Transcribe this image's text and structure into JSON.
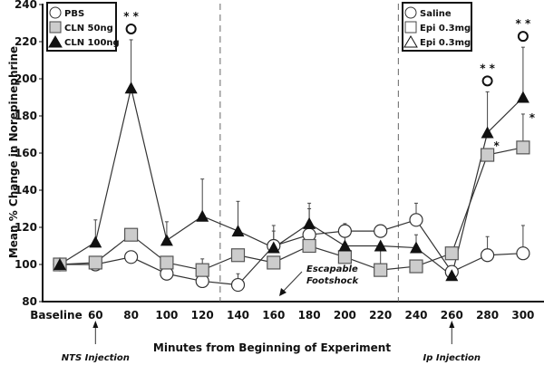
{
  "chart_data": {
    "type": "line",
    "xlabel": "Minutes from Beginning of Experiment",
    "ylabel": "Mean % Change in Norepinephrine",
    "ylim": [
      80,
      240
    ],
    "yticks": [
      "80",
      "100",
      "120",
      "140",
      "160",
      "180",
      "200",
      "220",
      "240"
    ],
    "categories": [
      "Baseline",
      "60",
      "80",
      "100",
      "120",
      "140",
      "160",
      "180",
      "200",
      "220",
      "240",
      "260",
      "280",
      "300"
    ],
    "series": [
      {
        "name": "PBS",
        "marker": "circle-open",
        "values": [
          100,
          100,
          104,
          95,
          91,
          89,
          110,
          116,
          118,
          118,
          124,
          96,
          105,
          106
        ],
        "err_upper": [
          null,
          null,
          null,
          null,
          null,
          95,
          121,
          130,
          122,
          120,
          133,
          null,
          115,
          121
        ]
      },
      {
        "name": "CLN 50ng",
        "marker": "square-gray",
        "values": [
          100,
          101,
          116,
          101,
          97,
          105,
          101,
          110,
          104,
          97,
          99,
          106,
          159,
          163
        ],
        "err_upper": [
          null,
          null,
          null,
          null,
          103,
          null,
          null,
          null,
          null,
          111,
          null,
          109,
          null,
          181
        ]
      },
      {
        "name": "CLN 100ng",
        "marker": "triangle-filled",
        "values": [
          100,
          112,
          195,
          113,
          126,
          118,
          109,
          122,
          110,
          110,
          109,
          94,
          171,
          190
        ],
        "err_upper": [
          null,
          124,
          221,
          123,
          146,
          134,
          118,
          133,
          117,
          null,
          116,
          null,
          193,
          217
        ]
      }
    ],
    "legend_left": [
      "PBS",
      "CLN 50ng",
      "CLN 100ng"
    ],
    "legend_right": [
      "Saline",
      "Epi 0.3mg",
      "Epi 0.3mg"
    ],
    "phase_dividers_minutes": [
      130,
      230
    ],
    "significance": [
      {
        "category": "80",
        "text": "* *",
        "star": true
      },
      {
        "category": "280",
        "text": "* *",
        "star": true
      },
      {
        "category": "300",
        "text": "* *",
        "star": true
      },
      {
        "category": "280",
        "text": "*",
        "star": false,
        "offset": "below-right"
      },
      {
        "category": "300",
        "text": "*",
        "star": false,
        "offset": "below-right"
      }
    ],
    "annotations": {
      "nts": "NTS Injection",
      "ip": "Ip Injection",
      "shock1": "Escapable",
      "shock2": "Footshock"
    }
  }
}
